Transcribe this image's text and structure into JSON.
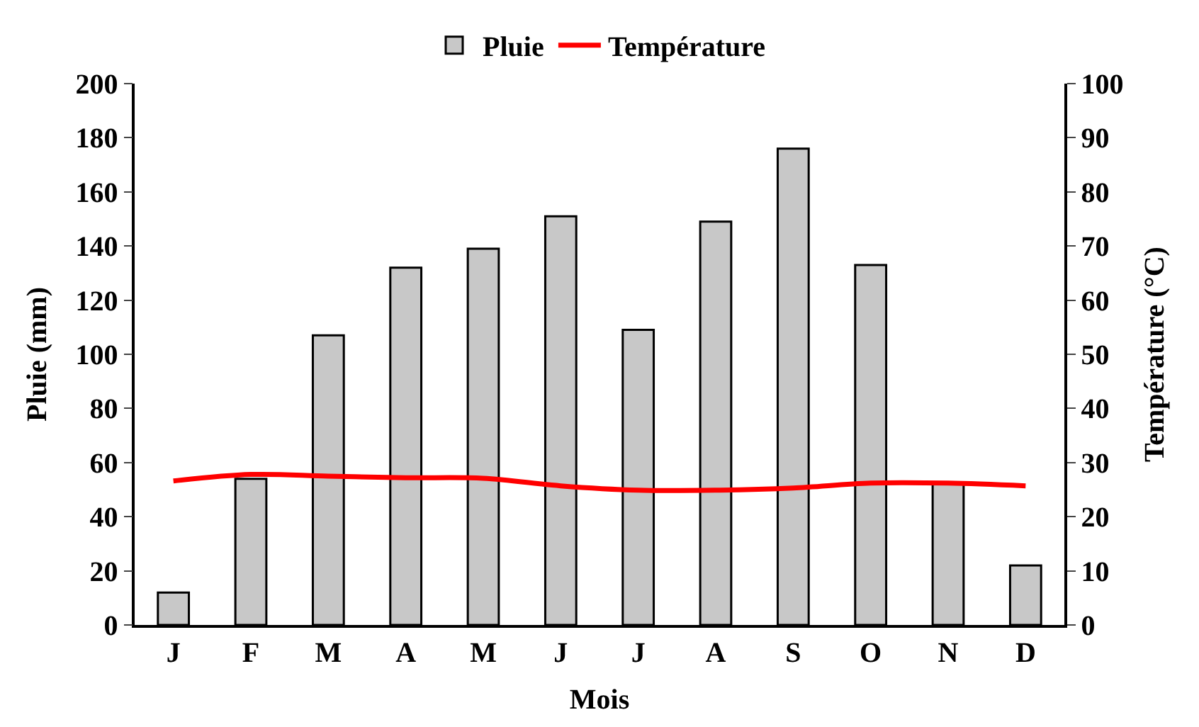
{
  "chart_data": {
    "type": "bar",
    "xlabel": "Mois",
    "ylabel": "Pluie (mm)",
    "y2label": "Température (°C)",
    "categories": [
      "J",
      "F",
      "M",
      "A",
      "M",
      "J",
      "J",
      "A",
      "S",
      "O",
      "N",
      "D"
    ],
    "series": [
      {
        "name": "Pluie",
        "color": "#c8c8c8",
        "values": [
          12,
          54,
          107,
          132,
          139,
          151,
          109,
          149,
          176,
          133,
          52,
          22
        ]
      },
      {
        "name": "Température",
        "type": "line",
        "axis": "y2",
        "color": "#ff0000",
        "values": [
          26.6,
          27.8,
          27.5,
          27.2,
          27.1,
          25.7,
          24.9,
          24.9,
          25.3,
          26.2,
          26.2,
          25.7
        ]
      }
    ],
    "ylim": [
      0,
      200
    ],
    "yticks": [
      0,
      20,
      40,
      60,
      80,
      100,
      120,
      140,
      160,
      180,
      200
    ],
    "y2lim": [
      0,
      100
    ],
    "y2ticks": [
      0,
      10,
      20,
      30,
      40,
      50,
      60,
      70,
      80,
      90,
      100
    ],
    "legend": "top",
    "grid": false,
    "marker": "none",
    "line_style": "solid"
  }
}
